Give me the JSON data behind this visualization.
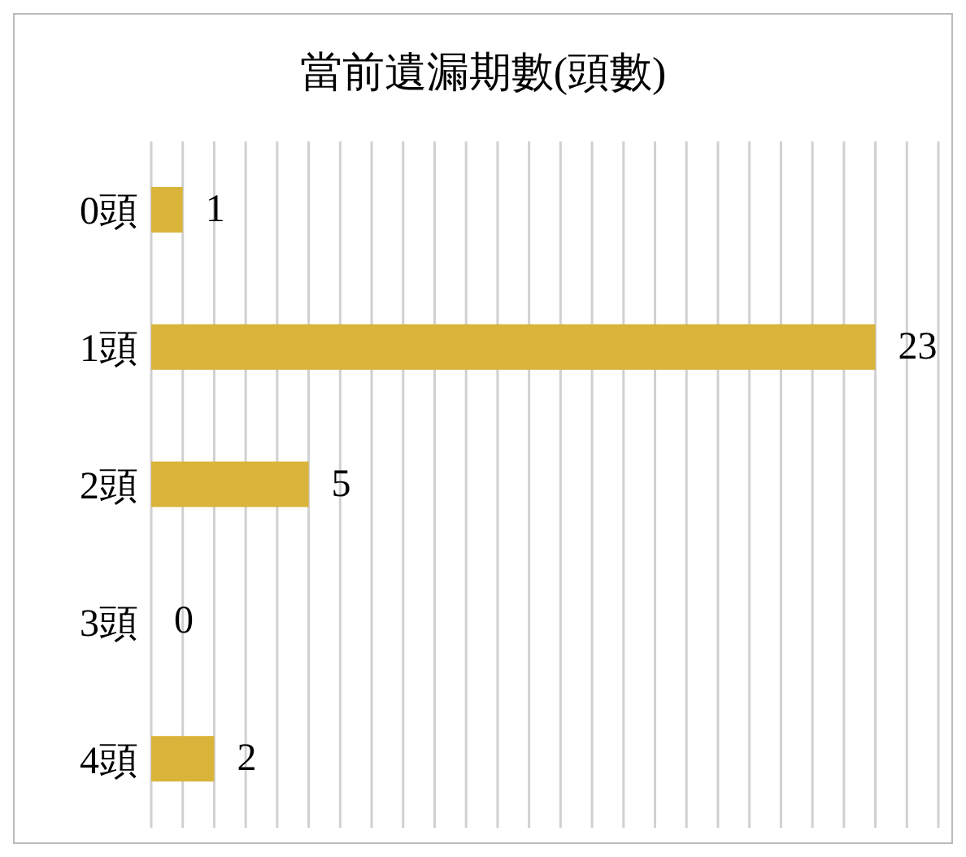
{
  "chart_data": {
    "type": "bar",
    "orientation": "horizontal",
    "title": "當前遺漏期數(頭數)",
    "categories": [
      "0頭",
      "1頭",
      "2頭",
      "3頭",
      "4頭"
    ],
    "values": [
      1,
      23,
      5,
      0,
      2
    ],
    "color": "#d9b43a",
    "xlim": [
      0,
      25
    ],
    "xticks": [
      {
        "value": 0,
        "label": null
      },
      {
        "value": 1,
        "label": null
      },
      {
        "value": 2,
        "label": null
      },
      {
        "value": 3,
        "label": null
      },
      {
        "value": 4,
        "label": null
      },
      {
        "value": 5,
        "label": null
      },
      {
        "value": 6,
        "label": null
      },
      {
        "value": 7,
        "label": null
      },
      {
        "value": 8,
        "label": null
      },
      {
        "value": 9,
        "label": null
      },
      {
        "value": 10,
        "label": null
      },
      {
        "value": 11,
        "label": null
      },
      {
        "value": 12,
        "label": null
      },
      {
        "value": 13,
        "label": null
      },
      {
        "value": 14,
        "label": null
      },
      {
        "value": 15,
        "label": null
      },
      {
        "value": 16,
        "label": null
      },
      {
        "value": 17,
        "label": null
      },
      {
        "value": 18,
        "label": null
      },
      {
        "value": 19,
        "label": null
      },
      {
        "value": 20,
        "label": null
      },
      {
        "value": 21,
        "label": null
      },
      {
        "value": 22,
        "label": null
      },
      {
        "value": 23,
        "label": null
      },
      {
        "value": 24,
        "label": null
      },
      {
        "value": 25,
        "label": null
      }
    ],
    "grid": "x",
    "tick_labels": "y",
    "data_labels": true,
    "legend": false
  }
}
